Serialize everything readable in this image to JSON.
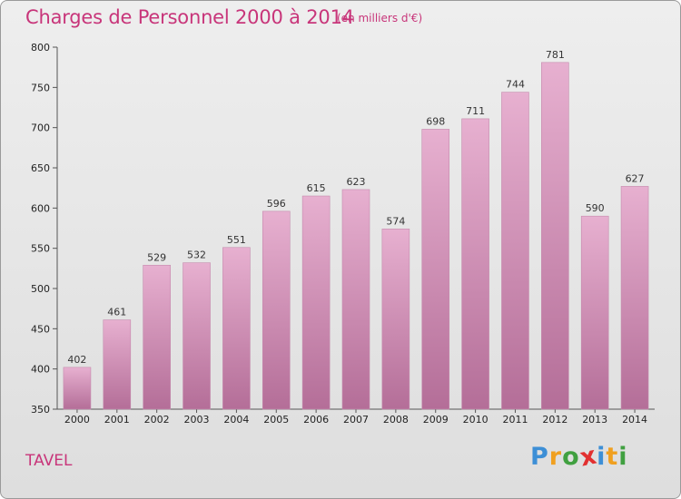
{
  "title": "Charges de Personnel 2000 à 2014",
  "subtitle": "(en milliers d'€)",
  "commune": "TAVEL",
  "logo": {
    "letters": [
      "P",
      "r",
      "o",
      "x",
      "i",
      "t",
      "i"
    ],
    "colors": [
      "#3d8fd6",
      "#f0a020",
      "#40a040",
      "#e23030",
      "#3d8fd6",
      "#f0a020",
      "#40a040"
    ]
  },
  "colors": {
    "bar_top": "#e7b0d0",
    "bar_bottom": "#b46e98",
    "title": "#c8357a"
  },
  "chart_data": {
    "type": "bar",
    "categories": [
      "2000",
      "2001",
      "2002",
      "2003",
      "2004",
      "2005",
      "2006",
      "2007",
      "2008",
      "2009",
      "2010",
      "2011",
      "2012",
      "2013",
      "2014"
    ],
    "values": [
      402,
      461,
      529,
      532,
      551,
      596,
      615,
      623,
      574,
      698,
      711,
      744,
      781,
      590,
      627
    ],
    "ylim": [
      350,
      800
    ],
    "yticks": [
      350,
      400,
      450,
      500,
      550,
      600,
      650,
      700,
      750,
      800
    ],
    "grid": false
  }
}
